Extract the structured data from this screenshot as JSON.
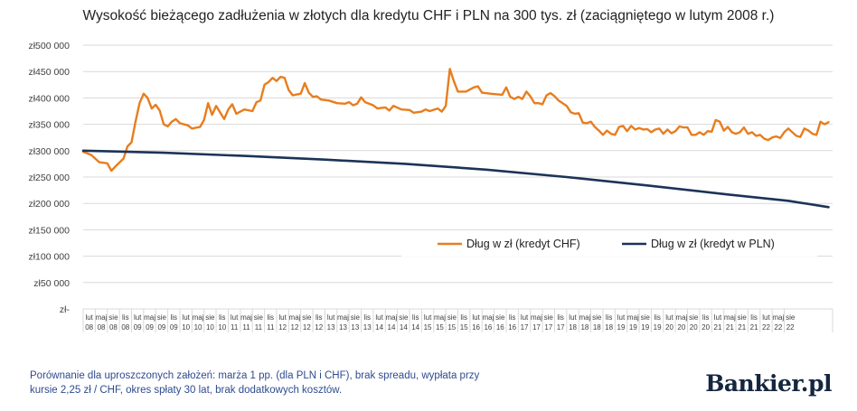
{
  "title": "Wysokość bieżącego zadłużenia w złotych dla kredytu CHF i PLN na 300 tys. zł (zaciągniętego w lutym 2008 r.)",
  "note_line1": "Porównanie dla uproszczonych założeń: marża 1 pp. (dla PLN i CHF), brak spreadu, wypłata przy",
  "note_line2": "kursie 2,25 zł / CHF, okres spłaty 30 lat, brak dodatkowych kosztów.",
  "logo": "Bankier.pl",
  "colors": {
    "chf": "#e87d1e",
    "pln": "#1c3358",
    "grid": "#d9d9d9",
    "axis_text": "#404040",
    "note": "#2e4b8f"
  },
  "chart_data": {
    "type": "line",
    "title": "Wysokość bieżącego zadłużenia w złotych dla kredytu CHF i PLN na 300 tys. zł (zaciągniętego w lutym 2008 r.)",
    "xlabel": "",
    "ylabel": "",
    "ylim": [
      0,
      500000
    ],
    "y_ticks": [
      {
        "value": 500000,
        "label": "zł500 000"
      },
      {
        "value": 450000,
        "label": "zł450 000"
      },
      {
        "value": 400000,
        "label": "zł400 000"
      },
      {
        "value": 350000,
        "label": "zł350 000"
      },
      {
        "value": 300000,
        "label": "zł300 000"
      },
      {
        "value": 250000,
        "label": "zł250 000"
      },
      {
        "value": 200000,
        "label": "zł200 000"
      },
      {
        "value": 150000,
        "label": "zł150 000"
      },
      {
        "value": 100000,
        "label": "zł100 000"
      },
      {
        "value": 50000,
        "label": "zł50 000"
      },
      {
        "value": 0,
        "label": "zł-"
      }
    ],
    "x_ticks": [
      {
        "i": 0,
        "top": "lut",
        "bottom": "08"
      },
      {
        "i": 3,
        "top": "maj",
        "bottom": "08"
      },
      {
        "i": 6,
        "top": "sie",
        "bottom": "08"
      },
      {
        "i": 9,
        "top": "lis",
        "bottom": "08"
      },
      {
        "i": 12,
        "top": "lut",
        "bottom": "09"
      },
      {
        "i": 15,
        "top": "maj",
        "bottom": "09"
      },
      {
        "i": 18,
        "top": "sie",
        "bottom": "09"
      },
      {
        "i": 21,
        "top": "lis",
        "bottom": "09"
      },
      {
        "i": 24,
        "top": "lut",
        "bottom": "10"
      },
      {
        "i": 27,
        "top": "maj",
        "bottom": "10"
      },
      {
        "i": 30,
        "top": "sie",
        "bottom": "10"
      },
      {
        "i": 33,
        "top": "lis",
        "bottom": "10"
      },
      {
        "i": 36,
        "top": "lut",
        "bottom": "11"
      },
      {
        "i": 39,
        "top": "maj",
        "bottom": "11"
      },
      {
        "i": 42,
        "top": "sie",
        "bottom": "11"
      },
      {
        "i": 45,
        "top": "lis",
        "bottom": "11"
      },
      {
        "i": 48,
        "top": "lut",
        "bottom": "12"
      },
      {
        "i": 51,
        "top": "maj",
        "bottom": "12"
      },
      {
        "i": 54,
        "top": "sie",
        "bottom": "12"
      },
      {
        "i": 57,
        "top": "lis",
        "bottom": "12"
      },
      {
        "i": 60,
        "top": "lut",
        "bottom": "13"
      },
      {
        "i": 63,
        "top": "maj",
        "bottom": "13"
      },
      {
        "i": 66,
        "top": "sie",
        "bottom": "13"
      },
      {
        "i": 69,
        "top": "lis",
        "bottom": "13"
      },
      {
        "i": 72,
        "top": "lut",
        "bottom": "14"
      },
      {
        "i": 75,
        "top": "maj",
        "bottom": "14"
      },
      {
        "i": 78,
        "top": "sie",
        "bottom": "14"
      },
      {
        "i": 81,
        "top": "lis",
        "bottom": "14"
      },
      {
        "i": 84,
        "top": "lut",
        "bottom": "15"
      },
      {
        "i": 87,
        "top": "maj",
        "bottom": "15"
      },
      {
        "i": 90,
        "top": "sie",
        "bottom": "15"
      },
      {
        "i": 93,
        "top": "lis",
        "bottom": "15"
      },
      {
        "i": 96,
        "top": "lut",
        "bottom": "16"
      },
      {
        "i": 99,
        "top": "maj",
        "bottom": "16"
      },
      {
        "i": 102,
        "top": "sie",
        "bottom": "16"
      },
      {
        "i": 105,
        "top": "lis",
        "bottom": "16"
      },
      {
        "i": 108,
        "top": "lut",
        "bottom": "17"
      },
      {
        "i": 111,
        "top": "maj",
        "bottom": "17"
      },
      {
        "i": 114,
        "top": "sie",
        "bottom": "17"
      },
      {
        "i": 117,
        "top": "lis",
        "bottom": "17"
      },
      {
        "i": 120,
        "top": "lut",
        "bottom": "18"
      },
      {
        "i": 123,
        "top": "maj",
        "bottom": "18"
      },
      {
        "i": 126,
        "top": "sie",
        "bottom": "18"
      },
      {
        "i": 129,
        "top": "lis",
        "bottom": "18"
      },
      {
        "i": 132,
        "top": "lut",
        "bottom": "19"
      },
      {
        "i": 135,
        "top": "maj",
        "bottom": "19"
      },
      {
        "i": 138,
        "top": "sie",
        "bottom": "19"
      },
      {
        "i": 141,
        "top": "lis",
        "bottom": "19"
      },
      {
        "i": 144,
        "top": "lut",
        "bottom": "20"
      },
      {
        "i": 147,
        "top": "maj",
        "bottom": "20"
      },
      {
        "i": 150,
        "top": "sie",
        "bottom": "20"
      },
      {
        "i": 153,
        "top": "lis",
        "bottom": "20"
      },
      {
        "i": 156,
        "top": "lut",
        "bottom": "21"
      },
      {
        "i": 159,
        "top": "maj",
        "bottom": "21"
      },
      {
        "i": 162,
        "top": "sie",
        "bottom": "21"
      },
      {
        "i": 165,
        "top": "lis",
        "bottom": "21"
      },
      {
        "i": 168,
        "top": "lut",
        "bottom": "22"
      },
      {
        "i": 171,
        "top": "maj",
        "bottom": "22"
      },
      {
        "i": 174,
        "top": "sie",
        "bottom": "22"
      }
    ],
    "n_points": 176,
    "legend_position": "inside-bottom-right",
    "series": [
      {
        "name": "Dług w zł (kredyt CHF)",
        "color": "#e87d1e",
        "points": [
          [
            0,
            298000
          ],
          [
            2,
            292000
          ],
          [
            4,
            278000
          ],
          [
            6,
            276000
          ],
          [
            7,
            262000
          ],
          [
            8,
            270000
          ],
          [
            10,
            285000
          ],
          [
            11,
            308000
          ],
          [
            12,
            316000
          ],
          [
            13,
            355000
          ],
          [
            14,
            390000
          ],
          [
            15,
            408000
          ],
          [
            16,
            400000
          ],
          [
            17,
            380000
          ],
          [
            18,
            387000
          ],
          [
            19,
            376000
          ],
          [
            20,
            350000
          ],
          [
            21,
            346000
          ],
          [
            22,
            355000
          ],
          [
            23,
            360000
          ],
          [
            24,
            352000
          ],
          [
            26,
            348000
          ],
          [
            27,
            342000
          ],
          [
            29,
            345000
          ],
          [
            30,
            358000
          ],
          [
            31,
            390000
          ],
          [
            32,
            368000
          ],
          [
            33,
            385000
          ],
          [
            35,
            360000
          ],
          [
            36,
            378000
          ],
          [
            37,
            388000
          ],
          [
            38,
            370000
          ],
          [
            40,
            378000
          ],
          [
            42,
            375000
          ],
          [
            43,
            392000
          ],
          [
            44,
            395000
          ],
          [
            45,
            425000
          ],
          [
            46,
            430000
          ],
          [
            47,
            438000
          ],
          [
            48,
            432000
          ],
          [
            49,
            440000
          ],
          [
            50,
            438000
          ],
          [
            51,
            415000
          ],
          [
            52,
            405000
          ],
          [
            54,
            408000
          ],
          [
            55,
            428000
          ],
          [
            56,
            410000
          ],
          [
            57,
            402000
          ],
          [
            58,
            403000
          ],
          [
            59,
            397000
          ],
          [
            61,
            395000
          ],
          [
            63,
            390000
          ],
          [
            65,
            389000
          ],
          [
            66,
            392000
          ],
          [
            67,
            386000
          ],
          [
            68,
            389000
          ],
          [
            69,
            401000
          ],
          [
            70,
            392000
          ],
          [
            72,
            386000
          ],
          [
            73,
            380000
          ],
          [
            75,
            382000
          ],
          [
            76,
            376000
          ],
          [
            77,
            385000
          ],
          [
            79,
            378000
          ],
          [
            81,
            377000
          ],
          [
            82,
            372000
          ],
          [
            84,
            374000
          ],
          [
            85,
            378000
          ],
          [
            86,
            375000
          ],
          [
            88,
            380000
          ],
          [
            89,
            374000
          ],
          [
            90,
            385000
          ],
          [
            91,
            455000
          ],
          [
            92,
            432000
          ],
          [
            93,
            412000
          ],
          [
            95,
            412000
          ],
          [
            97,
            420000
          ],
          [
            98,
            422000
          ],
          [
            99,
            410000
          ],
          [
            101,
            408000
          ],
          [
            104,
            406000
          ],
          [
            105,
            420000
          ],
          [
            106,
            402000
          ],
          [
            107,
            398000
          ],
          [
            108,
            402000
          ],
          [
            109,
            398000
          ],
          [
            110,
            412000
          ],
          [
            111,
            403000
          ],
          [
            112,
            390000
          ],
          [
            113,
            390000
          ],
          [
            114,
            388000
          ],
          [
            115,
            405000
          ],
          [
            116,
            409000
          ],
          [
            117,
            403000
          ],
          [
            118,
            395000
          ],
          [
            120,
            385000
          ],
          [
            121,
            373000
          ],
          [
            122,
            370000
          ],
          [
            123,
            371000
          ],
          [
            124,
            353000
          ],
          [
            125,
            352000
          ],
          [
            126,
            355000
          ],
          [
            127,
            345000
          ],
          [
            128,
            338000
          ],
          [
            129,
            330000
          ],
          [
            130,
            338000
          ],
          [
            131,
            332000
          ],
          [
            132,
            330000
          ],
          [
            133,
            345000
          ],
          [
            134,
            347000
          ],
          [
            135,
            337000
          ],
          [
            136,
            347000
          ],
          [
            137,
            340000
          ],
          [
            138,
            343000
          ],
          [
            139,
            340000
          ],
          [
            140,
            341000
          ],
          [
            141,
            335000
          ],
          [
            142,
            340000
          ],
          [
            143,
            342000
          ],
          [
            144,
            332000
          ],
          [
            145,
            340000
          ],
          [
            146,
            333000
          ],
          [
            147,
            337000
          ],
          [
            148,
            346000
          ],
          [
            149,
            344000
          ],
          [
            150,
            344000
          ],
          [
            151,
            330000
          ],
          [
            152,
            330000
          ],
          [
            153,
            335000
          ],
          [
            154,
            330000
          ],
          [
            155,
            337000
          ],
          [
            156,
            336000
          ],
          [
            157,
            358000
          ],
          [
            158,
            355000
          ],
          [
            159,
            338000
          ],
          [
            160,
            345000
          ],
          [
            161,
            335000
          ],
          [
            162,
            332000
          ],
          [
            163,
            335000
          ],
          [
            164,
            344000
          ],
          [
            165,
            332000
          ],
          [
            166,
            335000
          ],
          [
            167,
            328000
          ],
          [
            168,
            330000
          ],
          [
            169,
            323000
          ],
          [
            170,
            320000
          ],
          [
            171,
            325000
          ],
          [
            172,
            327000
          ],
          [
            173,
            324000
          ],
          [
            174,
            335000
          ],
          [
            175,
            342000
          ],
          [
            176,
            335000
          ],
          [
            177,
            328000
          ],
          [
            178,
            326000
          ],
          [
            179,
            342000
          ],
          [
            180,
            338000
          ],
          [
            181,
            332000
          ],
          [
            182,
            330000
          ],
          [
            183,
            355000
          ],
          [
            184,
            350000
          ],
          [
            185,
            354000
          ]
        ]
      },
      {
        "name": "Dług w zł (kredyt w PLN)",
        "color": "#1c3358",
        "points": [
          [
            0,
            300000
          ],
          [
            20,
            296000
          ],
          [
            40,
            290000
          ],
          [
            60,
            283000
          ],
          [
            80,
            275000
          ],
          [
            100,
            264000
          ],
          [
            120,
            250000
          ],
          [
            140,
            234000
          ],
          [
            160,
            217000
          ],
          [
            175,
            205000
          ],
          [
            185,
            193000
          ]
        ]
      }
    ]
  }
}
